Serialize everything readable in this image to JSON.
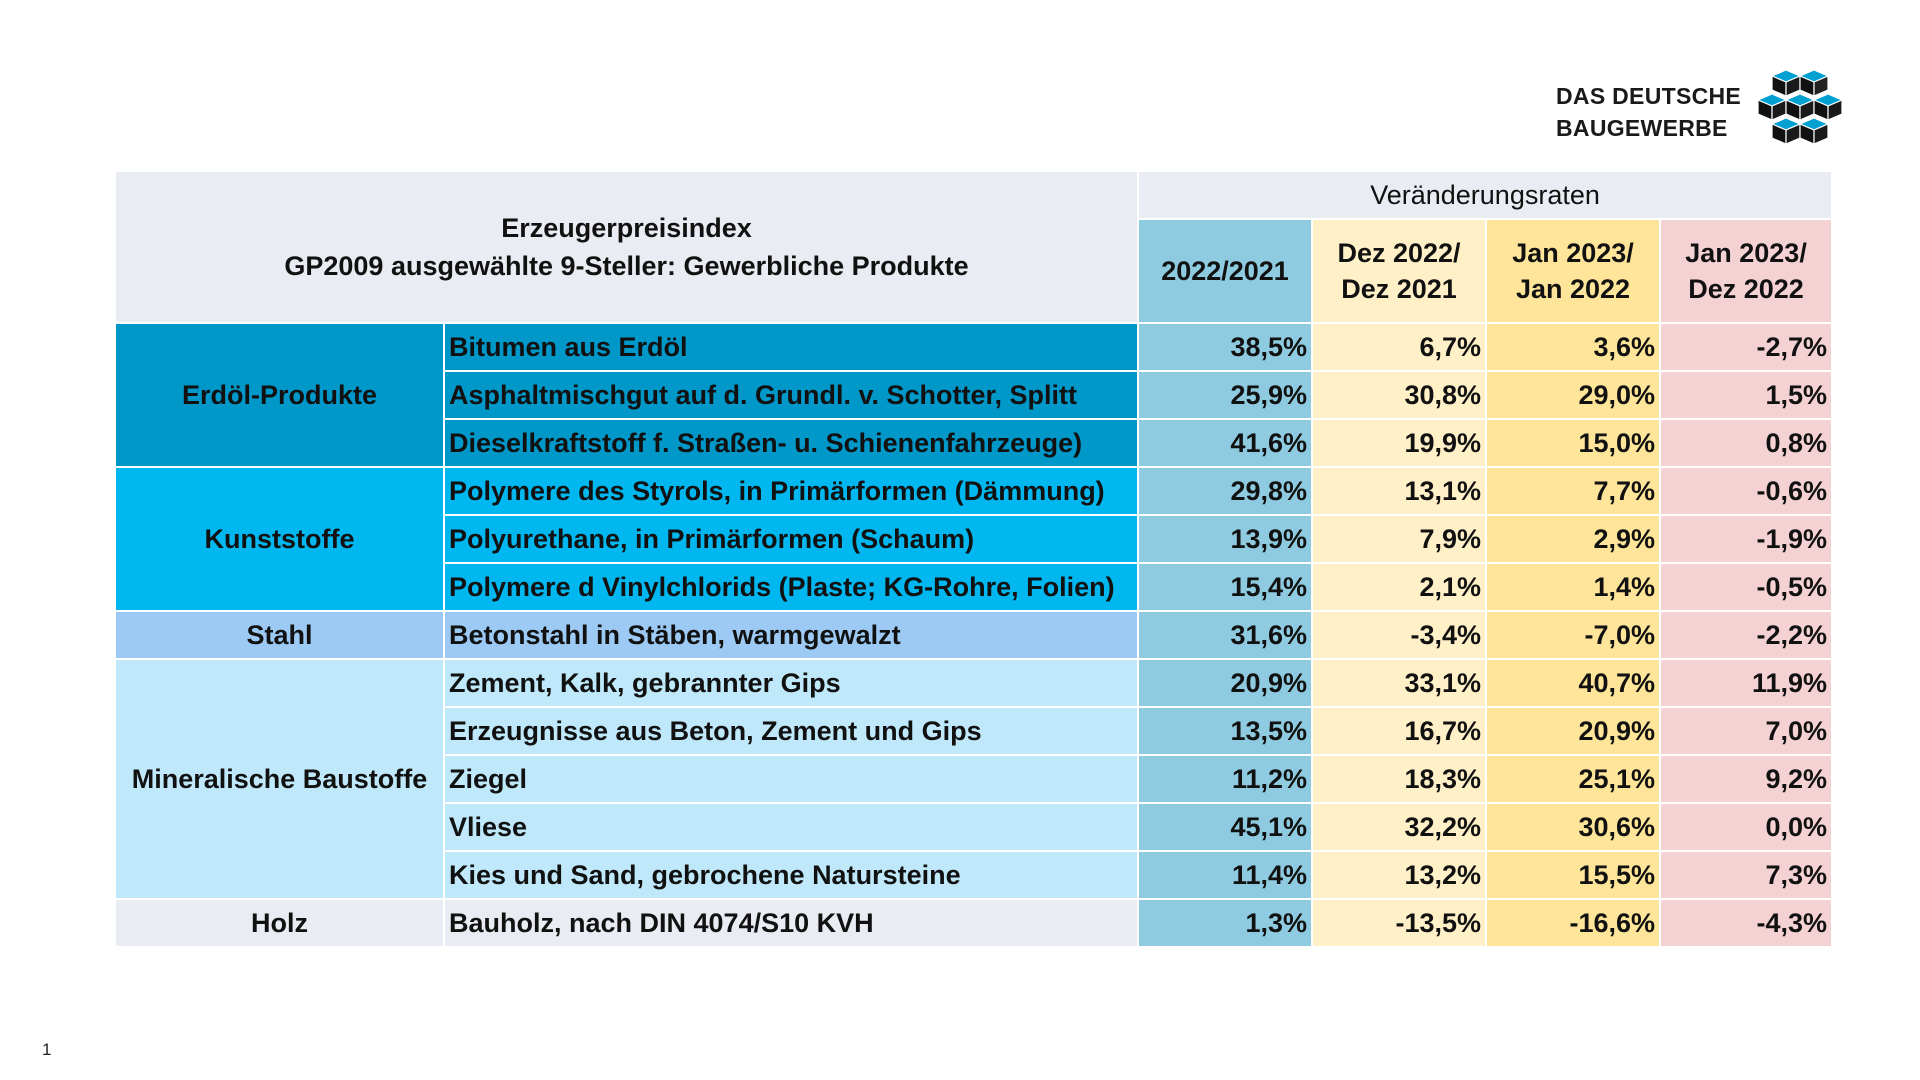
{
  "logo": {
    "line1": "DAS DEUTSCHE",
    "line2": "BAUGEWERBE"
  },
  "header": {
    "title_line1": "Erzeugerpreisindex",
    "title_line2": "GP2009 ausgewählte 9-Steller: Gewerbliche Produkte",
    "group_label": "Veränderungsraten",
    "columns": [
      {
        "line1": "2022/2021",
        "line2": ""
      },
      {
        "line1": "Dez 2022/",
        "line2": "Dez 2021"
      },
      {
        "line1": "Jan 2023/",
        "line2": "Jan 2022"
      },
      {
        "line1": "Jan 2023/",
        "line2": "Dez 2022"
      }
    ]
  },
  "groups": [
    {
      "category": "Erdöl-Produkte",
      "rows": [
        {
          "product": "Bitumen aus Erdöl",
          "values": [
            "38,5%",
            "6,7%",
            "3,6%",
            "-2,7%"
          ]
        },
        {
          "product": "Asphaltmischgut auf d. Grundl. v. Schotter, Splitt",
          "values": [
            "25,9%",
            "30,8%",
            "29,0%",
            "1,5%"
          ]
        },
        {
          "product": "Dieselkraftstoff f. Straßen- u. Schienenfahrzeuge)",
          "values": [
            "41,6%",
            "19,9%",
            "15,0%",
            "0,8%"
          ]
        }
      ]
    },
    {
      "category": "Kunststoffe",
      "rows": [
        {
          "product": "Polymere des Styrols, in Primärformen (Dämmung)",
          "values": [
            "29,8%",
            "13,1%",
            "7,7%",
            "-0,6%"
          ]
        },
        {
          "product": "Polyurethane, in Primärformen (Schaum)",
          "values": [
            "13,9%",
            "7,9%",
            "2,9%",
            "-1,9%"
          ]
        },
        {
          "product": "Polymere d Vinylchlorids (Plaste; KG-Rohre, Folien)",
          "values": [
            "15,4%",
            "2,1%",
            "1,4%",
            "-0,5%"
          ]
        }
      ]
    },
    {
      "category": "Stahl",
      "rows": [
        {
          "product": "Betonstahl in Stäben, warmgewalzt",
          "values": [
            "31,6%",
            "-3,4%",
            "-7,0%",
            "-2,2%"
          ]
        }
      ]
    },
    {
      "category": "Mineralische Baustoffe",
      "rows": [
        {
          "product": "Zement, Kalk, gebrannter Gips",
          "values": [
            "20,9%",
            "33,1%",
            "40,7%",
            "11,9%"
          ]
        },
        {
          "product": "Erzeugnisse aus Beton, Zement und Gips",
          "values": [
            "13,5%",
            "16,7%",
            "20,9%",
            "7,0%"
          ]
        },
        {
          "product": "Ziegel",
          "values": [
            "11,2%",
            "18,3%",
            "25,1%",
            "9,2%"
          ]
        },
        {
          "product": "Vliese",
          "values": [
            "45,1%",
            "32,2%",
            "30,6%",
            "0,0%"
          ]
        },
        {
          "product": "Kies und Sand, gebrochene Natursteine",
          "values": [
            "11,4%",
            "13,2%",
            "15,5%",
            "7,3%"
          ]
        }
      ]
    },
    {
      "category": "Holz",
      "rows": [
        {
          "product": "Bauholz, nach DIN 4074/S10 KVH",
          "values": [
            "1,3%",
            "-13,5%",
            "-16,6%",
            "-4,3%"
          ]
        }
      ]
    }
  ],
  "footer": {
    "slide_number": "1"
  }
}
